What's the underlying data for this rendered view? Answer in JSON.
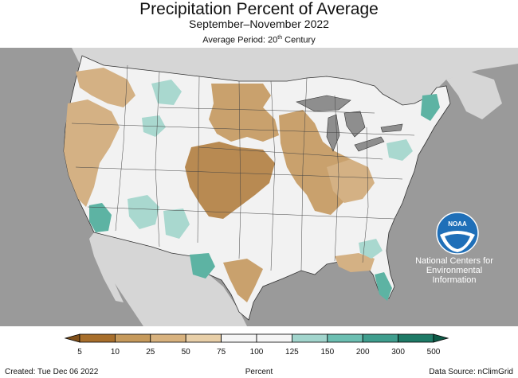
{
  "title": "Precipitation Percent of Average",
  "subtitle": "September–November 2022",
  "period": {
    "prefix": "Average Period: 20",
    "superscript": "th",
    "suffix": " Century"
  },
  "noaa": {
    "logo_text": "NOAA",
    "line1": "National Centers for",
    "line2": "Environmental",
    "line3": "Information"
  },
  "legend": {
    "ticks": [
      "5",
      "10",
      "25",
      "50",
      "75",
      "100",
      "125",
      "150",
      "200",
      "300",
      "500"
    ],
    "colors": [
      "#7f4f19",
      "#a86f2c",
      "#c69a5c",
      "#d8b27e",
      "#e8cfa8",
      "#f5f5f5",
      "#f5f5f5",
      "#a2d5cd",
      "#6cbfb2",
      "#3f9e8e",
      "#1e7a66",
      "#0e5a47"
    ]
  },
  "colors": {
    "land_base": "#f2f2f2",
    "ocean": "#9a9a9a",
    "neighbor_land": "#d6d6d6",
    "lakes": "#8e8e8e",
    "dry_dark": "#b88a52",
    "dry_light": "#d4b184",
    "wet_light": "#a9d8cf",
    "wet_dark": "#5db3a3"
  },
  "footer": {
    "created": "Created: Tue Dec 06 2022",
    "center_label": "Percent",
    "source": "Data Source: nClimGrid"
  }
}
